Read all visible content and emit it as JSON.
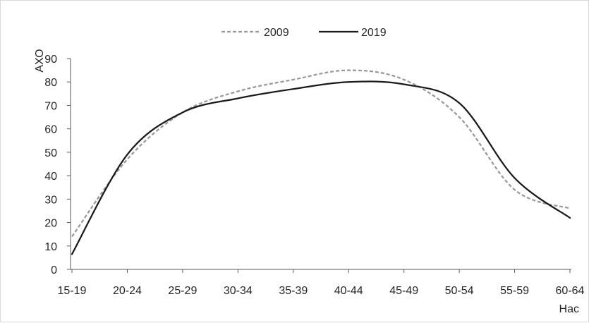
{
  "chart_data": {
    "type": "line",
    "title": "",
    "xlabel": "Нас",
    "ylabel": "АХО",
    "ylim": [
      0,
      90
    ],
    "yticks": [
      "0",
      "10",
      "20",
      "30",
      "40",
      "50",
      "60",
      "70",
      "80",
      "90"
    ],
    "categories": [
      "15-19",
      "20-24",
      "25-29",
      "30-34",
      "35-39",
      "40-44",
      "45-49",
      "50-54",
      "55-59",
      "60-64"
    ],
    "grid": false,
    "legend_position": "top-center",
    "smooth": true,
    "series": [
      {
        "name": "2009",
        "style": "dashed",
        "color": "#999999",
        "values": [
          14,
          47,
          67,
          76,
          81,
          85,
          81,
          65,
          34,
          26
        ]
      },
      {
        "name": "2019",
        "style": "solid",
        "color": "#1a1a1a",
        "values": [
          6.5,
          49,
          67,
          73,
          77,
          80,
          79,
          71,
          39,
          22
        ]
      }
    ]
  }
}
